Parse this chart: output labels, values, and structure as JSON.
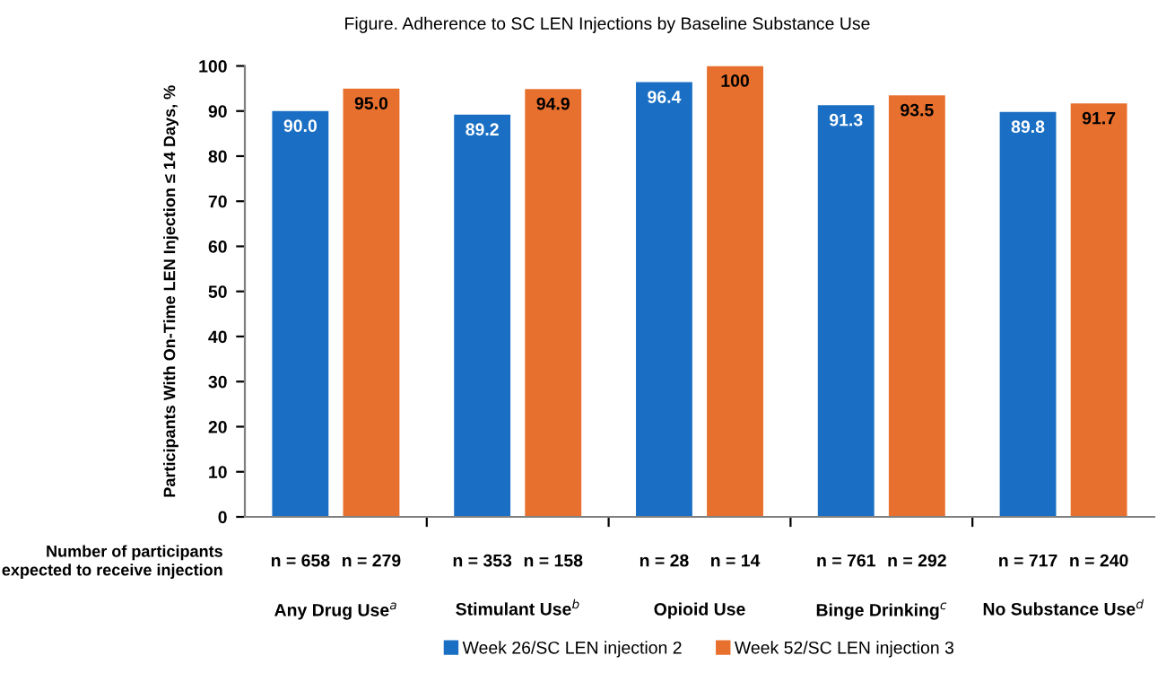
{
  "chart_data": {
    "type": "bar",
    "title": "Figure. Adherence to SC LEN Injections by Baseline Substance Use",
    "ylabel": "Participants With On-Time LEN Injection ≤ 14 Days, %",
    "categories": [
      "Any Drug Use$^{a}$",
      "Stimulant Use$^{b}$",
      "Opioid Use",
      "Binge Drinking$^{c}$",
      "No Substance Use$^{d}$"
    ],
    "series": [
      {
        "name": "Week 26/SC LEN injection 2",
        "color": "#1a6fc4",
        "values": [
          90.0,
          89.2,
          96.4,
          91.3,
          89.8
        ],
        "value_labels": [
          "90.0",
          "89.2",
          "96.4",
          "91.3",
          "89.8"
        ]
      },
      {
        "name": "Week 52/SC LEN injection 3",
        "color": "#e8702e",
        "values": [
          95.0,
          94.9,
          100,
          93.5,
          91.7
        ],
        "value_labels": [
          "95.0",
          "94.9",
          "100",
          "93.5",
          "91.7"
        ]
      }
    ],
    "annotations": [
      "Number of participants\nexpected to receive injection",
      "n = 658",
      "n = 279",
      "n = 353",
      "n = 158",
      "n = 28",
      "n = 14",
      "n = 761",
      "n = 292",
      "n = 717",
      "n = 240"
    ],
    "ylim": [
      0,
      100
    ],
    "yticks": [
      0,
      10,
      20,
      30,
      40,
      50,
      60,
      70,
      80,
      90,
      100
    ],
    "grid": false,
    "legend": "bottom"
  }
}
